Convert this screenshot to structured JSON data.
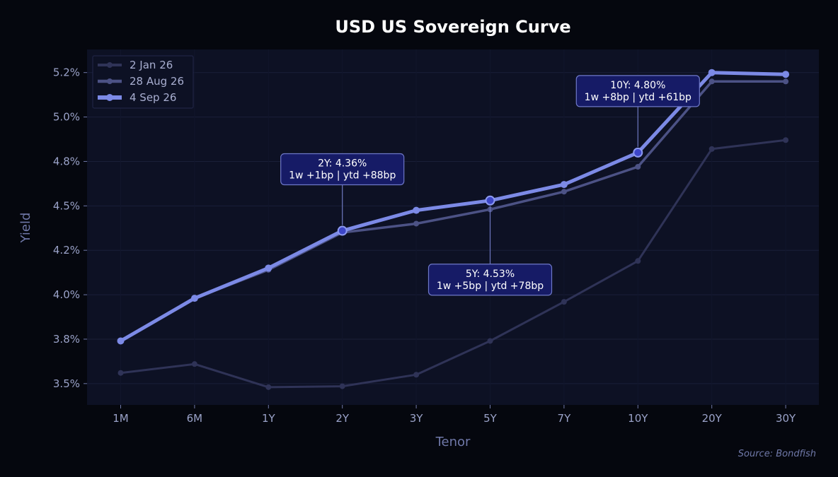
{
  "chart_data": {
    "type": "line",
    "title": "USD US Sovereign Curve",
    "xlabel": "Tenor",
    "ylabel": "Yield",
    "categories": [
      "1M",
      "6M",
      "1Y",
      "2Y",
      "3Y",
      "5Y",
      "7Y",
      "10Y",
      "20Y",
      "30Y"
    ],
    "ylim": [
      3.38,
      5.38
    ],
    "yticks": [
      3.5,
      3.75,
      4.0,
      4.25,
      4.5,
      4.75,
      5.0,
      5.25
    ],
    "ytick_labels": [
      "3.5%",
      "3.8%",
      "4.0%",
      "4.2%",
      "4.5%",
      "4.8%",
      "5.0%",
      "5.2%"
    ],
    "grid": true,
    "legend_position": "top-left",
    "series": [
      {
        "name": "2 Jan 26",
        "color": "#2f3357",
        "values": [
          3.56,
          3.61,
          3.48,
          3.485,
          3.55,
          3.74,
          3.96,
          4.19,
          4.82,
          4.87
        ]
      },
      {
        "name": "28 Aug 26",
        "color": "#4c5285",
        "values": [
          3.74,
          3.98,
          4.14,
          4.35,
          4.4,
          4.48,
          4.58,
          4.72,
          5.2,
          5.2
        ]
      },
      {
        "name": "4 Sep 26",
        "color": "#7c8ae6",
        "values": [
          3.74,
          3.98,
          4.15,
          4.36,
          4.475,
          4.53,
          4.62,
          4.8,
          5.25,
          5.24
        ]
      }
    ],
    "annotations": [
      {
        "tenor": "2Y",
        "line1": "2Y: 4.36%",
        "line2": "1w +1bp | ytd +88bp"
      },
      {
        "tenor": "5Y",
        "line1": "5Y: 4.53%",
        "line2": "1w +5bp | ytd +78bp"
      },
      {
        "tenor": "10Y",
        "line1": "10Y: 4.80%",
        "line2": "1w +8bp | ytd +61bp"
      }
    ],
    "source": "Source: Bondfish"
  }
}
